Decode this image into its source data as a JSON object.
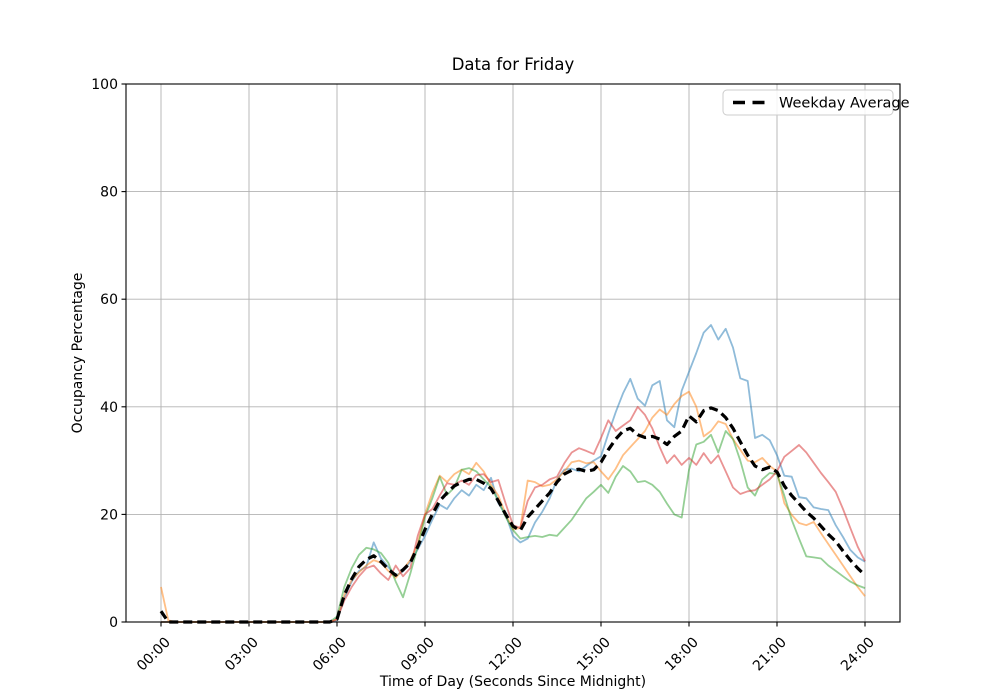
{
  "title": "Data for Friday",
  "xlabel": "Time of Day (Seconds Since Midnight)",
  "ylabel": "Occupancy Percentage",
  "legend": {
    "position": "upper right",
    "entries": [
      {
        "label": "Weekday Average",
        "line_style": "dashed",
        "color": "#000000"
      }
    ]
  },
  "chart_data": {
    "type": "line",
    "title": "Data for Friday",
    "xlabel": "Time of Day (Seconds Since Midnight)",
    "ylabel": "Occupancy Percentage",
    "grid": true,
    "grid_color": "#b2b2b2",
    "ylim": [
      0,
      100
    ],
    "y_ticks": [
      0,
      20,
      40,
      60,
      80,
      100
    ],
    "x_tick_hours": [
      0,
      3,
      6,
      9,
      12,
      15,
      18,
      21,
      24
    ],
    "x_tick_labels": [
      "00:00",
      "03:00",
      "06:00",
      "09:00",
      "12:00",
      "15:00",
      "18:00",
      "21:00",
      "24:00"
    ],
    "x_start_hours": 0,
    "x_step_hours": 0.25,
    "legend_position": "upper right",
    "series": [
      {
        "id": "blue",
        "name": "unlabeled blue line",
        "color": "#1f77b4",
        "opacity": 0.5,
        "width": 1.8,
        "dash": null,
        "values": [
          0,
          0,
          0,
          0,
          0,
          0,
          0,
          0,
          0,
          0,
          0,
          0,
          0,
          0,
          0,
          0,
          0,
          0,
          0,
          0,
          0,
          0,
          0,
          0,
          0.3,
          4.5,
          7.5,
          9.5,
          10.3,
          14.8,
          11.8,
          10.2,
          8.6,
          9.4,
          11.2,
          13.5,
          16,
          19,
          21.8,
          21,
          23,
          24.5,
          23.5,
          25.5,
          24.5,
          26.8,
          22.1,
          20,
          16,
          14.8,
          15.5,
          18.5,
          20.5,
          23,
          26.5,
          28.3,
          28.5,
          28,
          29,
          30,
          30.8,
          35,
          39,
          42.5,
          45.2,
          41.5,
          40.2,
          44,
          44.8,
          37.5,
          36.2,
          43,
          46.5,
          50,
          53.8,
          55.2,
          52.5,
          54.5,
          51,
          45.3,
          44.8,
          34.2,
          34.8,
          33.8,
          31,
          27.2,
          27,
          23.2,
          23,
          21.3,
          21,
          20.8,
          18,
          15.8,
          13.4,
          12,
          11.2
        ]
      },
      {
        "id": "orange",
        "name": "unlabeled orange line",
        "color": "#ff7f0e",
        "opacity": 0.5,
        "width": 1.8,
        "dash": null,
        "values": [
          6.5,
          0.3,
          0,
          0,
          0,
          0,
          0,
          0,
          0,
          0,
          0,
          0,
          0,
          0,
          0,
          0,
          0,
          0,
          0,
          0,
          0,
          0,
          0,
          0,
          0.5,
          5,
          7.8,
          9.2,
          10.5,
          11.5,
          11,
          9.5,
          8.2,
          9.8,
          11.5,
          14.5,
          20,
          24,
          27.2,
          26,
          27.5,
          28.3,
          27.5,
          29.6,
          28,
          25.5,
          23.5,
          20,
          17.2,
          17.5,
          26.3,
          26,
          25.2,
          25.5,
          26.5,
          28,
          29.7,
          30,
          29.5,
          29.7,
          28,
          26.5,
          28.5,
          31,
          32.5,
          34,
          35.5,
          38,
          39.5,
          38.5,
          40.5,
          42,
          42.8,
          40,
          34.5,
          35.5,
          37.3,
          36.8,
          34,
          32,
          30,
          29.7,
          30.5,
          29,
          28,
          22.1,
          19.9,
          18.4,
          18,
          18.6,
          16.5,
          14.5,
          12.5,
          10.5,
          8.5,
          6.5,
          4.8
        ]
      },
      {
        "id": "green",
        "name": "unlabeled green line",
        "color": "#2ca02c",
        "opacity": 0.5,
        "width": 1.8,
        "dash": null,
        "values": [
          0,
          0,
          0,
          0,
          0,
          0,
          0,
          0,
          0,
          0,
          0,
          0,
          0,
          0,
          0,
          0,
          0,
          0,
          0,
          0,
          0,
          0,
          0,
          0,
          1,
          6.5,
          10,
          12.5,
          13.8,
          13.5,
          12.8,
          11,
          7.5,
          4.6,
          9,
          14,
          19.5,
          23,
          27,
          23.6,
          25,
          28.3,
          28.6,
          28,
          26.5,
          25.1,
          22.5,
          19.5,
          17.1,
          15.5,
          15.8,
          16,
          15.8,
          16.2,
          16,
          17.5,
          19,
          21,
          23,
          24.2,
          25.5,
          24,
          27,
          29,
          28,
          26,
          26.2,
          25.5,
          24.2,
          22,
          20,
          19.4,
          28.3,
          33,
          33.5,
          34.8,
          31.5,
          35.5,
          34,
          30,
          25,
          23.5,
          26.5,
          27.7,
          27.5,
          23.5,
          19,
          15.5,
          12.2,
          12,
          11.8,
          10.5,
          9.5,
          8.5,
          7.5,
          6.8,
          6.3
        ]
      },
      {
        "id": "red",
        "name": "unlabeled red line",
        "color": "#d62728",
        "opacity": 0.5,
        "width": 1.8,
        "dash": null,
        "values": [
          0,
          0,
          0,
          0,
          0,
          0,
          0,
          0,
          0,
          0,
          0,
          0,
          0,
          0,
          0,
          0,
          0,
          0,
          0,
          0,
          0,
          0,
          0,
          0,
          0.5,
          4,
          6.5,
          8.5,
          10,
          10.5,
          9,
          7.8,
          10.5,
          8.5,
          10,
          16,
          20,
          21,
          23.5,
          25.8,
          25.5,
          26.3,
          25.5,
          27.3,
          27.5,
          26,
          26.4,
          22,
          18,
          17.5,
          22.5,
          25,
          25.5,
          26.5,
          27,
          29.5,
          31.5,
          32.3,
          31.8,
          31.2,
          34.2,
          37.5,
          35.5,
          36.5,
          37.5,
          40,
          38.5,
          36,
          32.5,
          29.5,
          31,
          29.2,
          30.5,
          29.2,
          31.4,
          29.5,
          31,
          28,
          25,
          23.8,
          24.3,
          24.5,
          25.5,
          26.5,
          28,
          30.7,
          31.8,
          32.9,
          31.5,
          29.6,
          27.7,
          26,
          24.2,
          21,
          17.5,
          14,
          11.3
        ]
      },
      {
        "id": "weekday-average",
        "name": "Weekday Average",
        "color": "#000000",
        "opacity": 1,
        "width": 3.2,
        "dash": "9 5",
        "values": [
          2,
          0,
          0,
          0,
          0,
          0,
          0,
          0,
          0,
          0,
          0,
          0,
          0,
          0,
          0,
          0,
          0,
          0,
          0,
          0,
          0,
          0,
          0,
          0,
          0.5,
          5,
          8,
          10.3,
          11.6,
          12.3,
          11.2,
          9.8,
          8.7,
          9.7,
          11,
          14,
          17.2,
          20,
          22.5,
          24,
          25.3,
          26,
          26.5,
          26.5,
          25.8,
          24.8,
          22.5,
          20,
          17.8,
          17,
          19.5,
          21,
          22.5,
          24,
          26,
          27.5,
          28.2,
          28.4,
          28,
          28.3,
          29.7,
          32,
          34,
          35.5,
          36,
          34.8,
          34.3,
          34.5,
          34,
          33,
          34.5,
          35.5,
          38.3,
          37.2,
          39.3,
          39.8,
          39.3,
          38,
          36,
          33.5,
          31,
          29,
          28.3,
          28.8,
          27.9,
          25.3,
          23.5,
          22,
          20.5,
          19.3,
          17.8,
          16.3,
          15,
          13.2,
          11.5,
          10,
          8.7
        ]
      }
    ]
  }
}
